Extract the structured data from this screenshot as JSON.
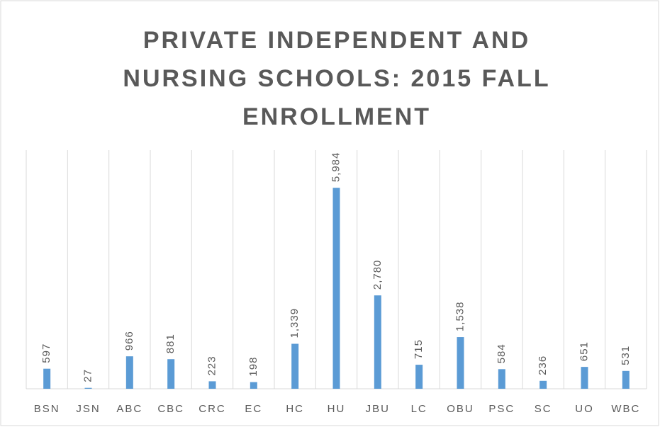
{
  "chart_data": {
    "type": "bar",
    "title": "PRIVATE INDEPENDENT AND NURSING SCHOOLS: 2015 FALL ENROLLMENT",
    "categories": [
      "BSN",
      "JSN",
      "ABC",
      "CBC",
      "CRC",
      "EC",
      "HC",
      "HU",
      "JBU",
      "LC",
      "OBU",
      "PSC",
      "SC",
      "UO",
      "WBC"
    ],
    "values": [
      597,
      27,
      966,
      881,
      223,
      198,
      1339,
      5984,
      2780,
      715,
      1538,
      584,
      236,
      651,
      531
    ],
    "value_labels": [
      "597",
      "27",
      "966",
      "881",
      "223",
      "198",
      "1,339",
      "5,984",
      "2,780",
      "715",
      "1,538",
      "584",
      "236",
      "651",
      "531"
    ],
    "color": "#5b9bd5",
    "ylim": [
      0,
      7000
    ]
  }
}
